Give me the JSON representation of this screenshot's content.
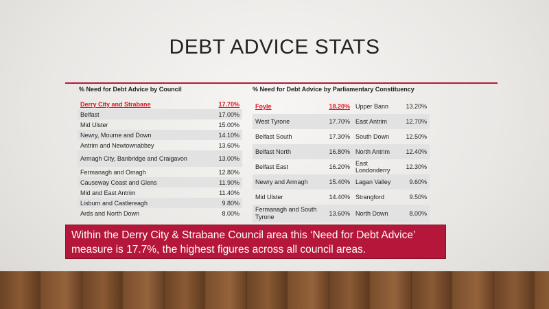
{
  "header": {
    "title": "DEBT ADVICE STATS"
  },
  "council_table": {
    "title": "% Need for Debt Advice by Council",
    "rows": [
      [
        "Derry City and Strabane",
        "17.70%"
      ],
      [
        "Belfast",
        "17.00%"
      ],
      [
        "Mid Ulster",
        "15.00%"
      ],
      [
        "Newry, Mourne and Down",
        "14.10%"
      ],
      [
        "Antrim and Newtownabbey",
        "13.60%"
      ],
      [
        "Armagh City, Banbridge and Craigavon",
        "13.00%"
      ],
      [
        "Fermanagh and Omagh",
        "12.80%"
      ],
      [
        "Causeway Coast and Glens",
        "11.90%"
      ],
      [
        "Mid and East Antrim",
        "11.40%"
      ],
      [
        "Lisburn and Castlereagh",
        "9.80%"
      ],
      [
        "Ards and North Down",
        "8.00%"
      ]
    ]
  },
  "constituency_table": {
    "title": "% Need for Debt Advice by Parliamentary Constituency",
    "rows": [
      [
        "Foyle",
        "18.20%",
        "Upper Bann",
        "13.20%"
      ],
      [
        "West Tyrone",
        "17.70%",
        "East Antrim",
        "12.70%"
      ],
      [
        "Belfast South",
        "17.30%",
        "South Down",
        "12.50%"
      ],
      [
        "Belfast North",
        "16.80%",
        "North Antrim",
        "12.40%"
      ],
      [
        "Belfast East",
        "16.20%",
        "East Londonderry",
        "12.30%"
      ],
      [
        "Newry and Armagh",
        "15.40%",
        "Lagan Valley",
        "9.60%"
      ],
      [
        "Mid Ulster",
        "14.40%",
        "Strangford",
        "9.50%"
      ],
      [
        "Fermanagh and South Tyrone",
        "13.60%",
        "North Down",
        "8.00%"
      ]
    ]
  },
  "callout": {
    "text": "Within the Derry City & Strabane Council area this ‘Need for Debt Advice’ measure is 17.7%, the highest figures across all council areas."
  }
}
